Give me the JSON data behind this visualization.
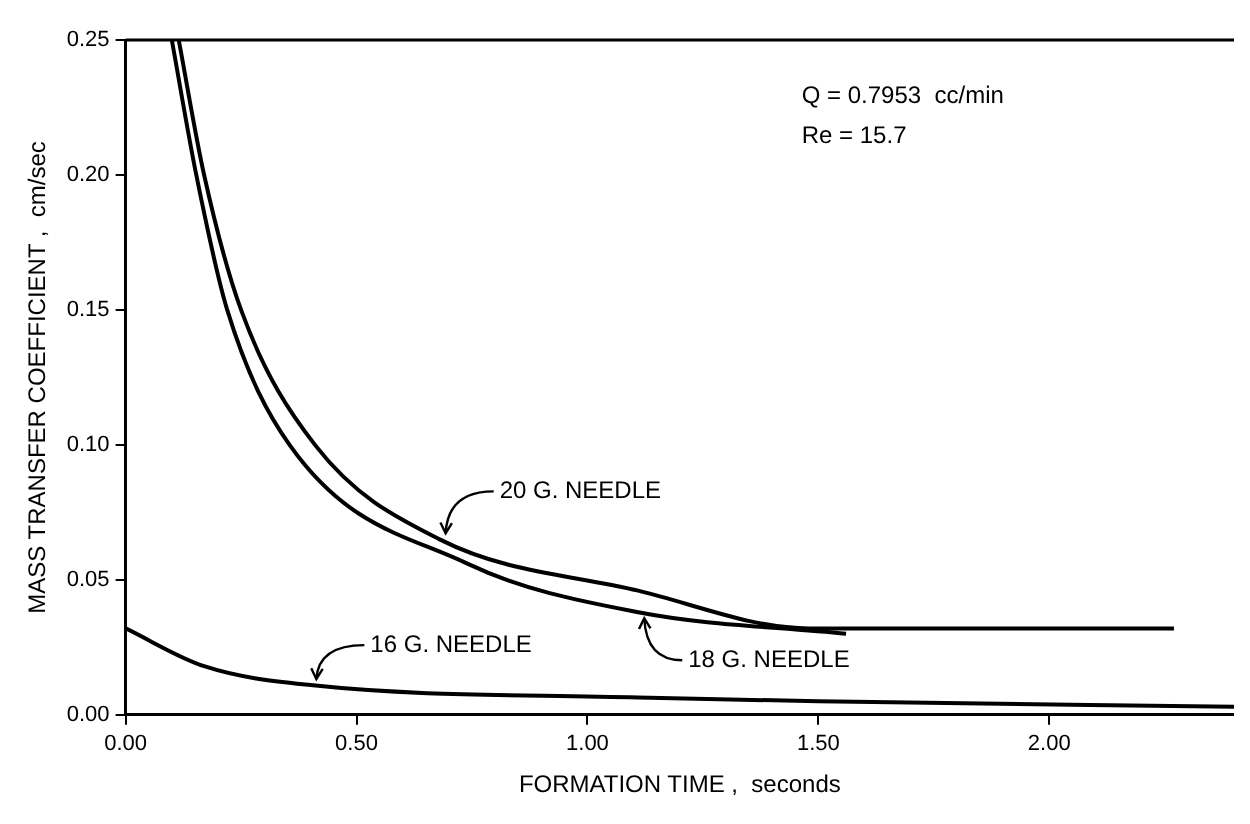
{
  "chart_data": {
    "type": "line",
    "xlabel": "FORMATION TIME ,  seconds",
    "ylabel": "MASS TRANSFER COEFFICIENT ,  cm/sec",
    "annotations": [
      "Q = 0.7953  cc/min",
      "Re = 15.7"
    ],
    "series": [
      {
        "name": "20 G. NEEDLE",
        "color": "#000000",
        "x": [
          0.115,
          0.17,
          0.25,
          0.41,
          0.68,
          1.11,
          1.48,
          1.9,
          2.27
        ],
        "values": [
          0.25,
          0.2,
          0.15,
          0.1,
          0.065,
          0.046,
          0.032,
          0.032,
          0.032
        ]
      },
      {
        "name": "18 G. NEEDLE",
        "color": "#000000",
        "x": [
          0.1,
          0.153,
          0.22,
          0.355,
          0.74,
          1.11,
          1.56
        ],
        "values": [
          0.25,
          0.2,
          0.15,
          0.1,
          0.056,
          0.038,
          0.03
        ]
      },
      {
        "name": "16 G. NEEDLE",
        "color": "#000000",
        "x": [
          0,
          0.17,
          0.4,
          1.11,
          1.5,
          2.4
        ],
        "values": [
          0.032,
          0.018,
          0.011,
          0.0064,
          0.005,
          0.003
        ]
      }
    ],
    "xlim": [
      0,
      2.4
    ],
    "xticks": [
      {
        "value": 0,
        "label": "0.00"
      },
      {
        "value": 0.5,
        "label": "0.50"
      },
      {
        "value": 1,
        "label": "1.00"
      },
      {
        "value": 1.5,
        "label": "1.50"
      },
      {
        "value": 2,
        "label": "2.00"
      }
    ],
    "ylim": [
      0,
      0.25
    ],
    "yticks": [
      {
        "value": 0,
        "label": "0.00"
      },
      {
        "value": 0.05,
        "label": "0.05"
      },
      {
        "value": 0.1,
        "label": "0.10"
      },
      {
        "value": 0.15,
        "label": "0.15"
      },
      {
        "value": 0.2,
        "label": "0.20"
      },
      {
        "value": 0.25,
        "label": "0.25"
      }
    ],
    "grid": false,
    "legend": false,
    "marker": "none",
    "line_style": "solid"
  }
}
